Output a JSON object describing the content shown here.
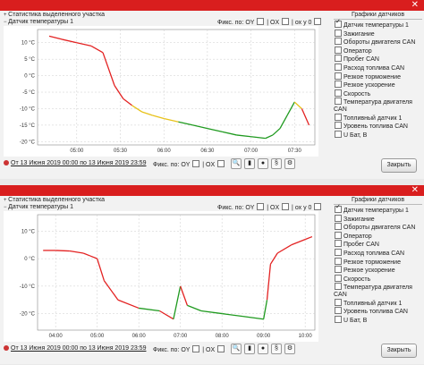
{
  "windows": [
    {
      "title": "",
      "stats_label": "Статистика выделенного участка",
      "sensor_label": "Датчик температуры 1",
      "fix_label": "Фикс. по:",
      "fix_oy": "OY",
      "fix_ox": "OX",
      "fix_ox0": "ох у 0",
      "footer_range": "От 13 Июня 2019 00:00 по 13 Июня 2019 23:59",
      "footer_fix": "Фикс. по:",
      "footer_oy": "OY",
      "footer_ox": "OX",
      "close_button": "Закрыть",
      "sidebar_title": "Графики датчиков",
      "chart_data": {
        "type": "line",
        "ylabel": "",
        "xlabel": "",
        "ylim": [
          -21,
          14
        ],
        "y_ticks": [
          "10 °C",
          "5 °C",
          "0 °C",
          "-5 °C",
          "-10 °C",
          "-15 °C",
          "-20 °C"
        ],
        "x_ticks": [
          "05:00",
          "05:30",
          "06:00",
          "06:30",
          "07:00",
          "07:30"
        ],
        "grid": true,
        "series": [
          {
            "name": "Датчик температуры 1",
            "colors": [
              "#e32222",
              "#e8c21a",
              "#1f9a1f"
            ],
            "x": [
              "04:41",
              "04:50",
              "05:00",
              "05:10",
              "05:18",
              "05:26",
              "05:32",
              "05:38",
              "05:45",
              "05:52",
              "06:00",
              "06:10",
              "06:20",
              "06:30",
              "06:40",
              "06:50",
              "07:00",
              "07:10",
              "07:15",
              "07:20",
              "07:25",
              "07:30",
              "07:35",
              "07:40"
            ],
            "y": [
              12,
              11,
              10,
              9,
              7,
              -3,
              -7,
              -9,
              -11,
              -12,
              -13,
              -14,
              -15,
              -16,
              -17,
              -18,
              -18.5,
              -19,
              -18,
              -16,
              -12,
              -8,
              -10,
              -15
            ]
          }
        ]
      }
    },
    {
      "title": "",
      "stats_label": "Статистика выделенного участка",
      "sensor_label": "Датчик температуры 1",
      "fix_label": "Фикс. по:",
      "fix_oy": "OY",
      "fix_ox": "OX",
      "fix_ox0": "ох у 0",
      "footer_range": "От 13 Июня 2019 00:00 по 13 Июня 2019 23:59",
      "footer_fix": "Фикс. по:",
      "footer_oy": "OY",
      "footer_ox": "OX",
      "close_button": "Закрыть",
      "sidebar_title": "Графики датчиков",
      "chart_data": {
        "type": "line",
        "ylabel": "",
        "xlabel": "",
        "ylim": [
          -26,
          16
        ],
        "y_ticks": [
          "10 °C",
          "0 °C",
          "-10 °C",
          "-20 °C"
        ],
        "x_ticks": [
          "04:00",
          "05:00",
          "06:00",
          "07:00",
          "08:00",
          "09:00",
          "10:00"
        ],
        "grid": true,
        "series": [
          {
            "name": "Датчик температуры 1",
            "colors": [
              "#e32222",
              "#e8c21a",
              "#1f9a1f"
            ],
            "x": [
              "03:42",
              "04:00",
              "04:20",
              "04:40",
              "04:50",
              "05:00",
              "05:10",
              "05:30",
              "06:00",
              "06:30",
              "06:50",
              "07:00",
              "07:10",
              "07:30",
              "08:00",
              "08:30",
              "09:00",
              "09:05",
              "09:10",
              "09:20",
              "09:40",
              "10:00",
              "10:10"
            ],
            "y": [
              3,
              3,
              2.8,
              2,
              1,
              0,
              -8,
              -15,
              -18,
              -19,
              -22,
              -10,
              -17,
              -19,
              -20,
              -21,
              -22,
              -15,
              -2,
              2,
              5,
              7,
              8
            ]
          }
        ]
      }
    }
  ],
  "sidebar_items": [
    {
      "label": "Датчик температуры 1",
      "checked": true
    },
    {
      "label": "Зажигание",
      "checked": false
    },
    {
      "label": "Обороты двигателя CAN",
      "checked": false
    },
    {
      "label": "Оператор",
      "checked": false
    },
    {
      "label": "Пробег CAN",
      "checked": false
    },
    {
      "label": "Расход топлива CAN",
      "checked": false
    },
    {
      "label": "Резкое торможение",
      "checked": false
    },
    {
      "label": "Резкое ускорение",
      "checked": false
    },
    {
      "label": "Скорость",
      "checked": false
    },
    {
      "label": "Температура двигателя CAN",
      "checked": false
    },
    {
      "label": "Топливный датчик 1",
      "checked": false
    },
    {
      "label": "Уровень топлива CAN",
      "checked": false
    },
    {
      "label": "U Бат, B",
      "checked": false
    }
  ]
}
